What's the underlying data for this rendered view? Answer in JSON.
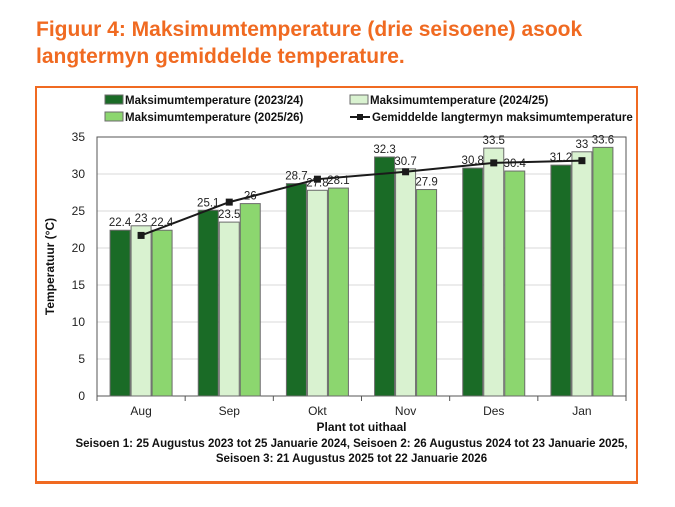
{
  "title": "Figuur 4: Maksimumtemperature (drie seisoene) asook langtermyn gemiddelde temperature.",
  "colors": {
    "accent": "#f06a21",
    "s1": "#1a6b26",
    "s2": "#d9f2d0",
    "s3": "#8cd66f",
    "line": "#1a1a1a"
  },
  "chart_data": {
    "type": "bar",
    "title": "",
    "categories": [
      "Aug",
      "Sep",
      "Okt",
      "Nov",
      "Des",
      "Jan"
    ],
    "series": [
      {
        "name": "Maksimumtemperature (2023/24)",
        "values": [
          22.4,
          25.1,
          28.7,
          32.3,
          30.8,
          31.2
        ]
      },
      {
        "name": "Maksimumtemperature (2024/25)",
        "values": [
          23,
          23.5,
          27.8,
          30.7,
          33.5,
          33
        ]
      },
      {
        "name": "Maksimumtemperature (2025/26)",
        "values": [
          22.4,
          26,
          28.1,
          27.9,
          30.4,
          33.6
        ]
      }
    ],
    "line_series": {
      "name": "Gemiddelde langtermyn maksimumtemperature",
      "type": "line",
      "values": [
        21.7,
        26.2,
        29.3,
        30.3,
        31.5,
        31.8
      ]
    },
    "xlabel": "Plant tot uithaal",
    "ylabel": "Temperatuur (°C)",
    "ylim": [
      0,
      35
    ],
    "yticks": [
      0,
      5,
      10,
      15,
      20,
      25,
      30,
      35
    ],
    "grid": true,
    "legend_position": "top",
    "notes": [
      "Seisoen 1: 25 Augustus 2023 tot 25 Januarie 2024, Seisoen 2: 26 Augustus 2024 tot 23 Januarie 2025,",
      "Seisoen 3: 21 Augustus 2025 tot 22 Januarie 2026"
    ]
  }
}
